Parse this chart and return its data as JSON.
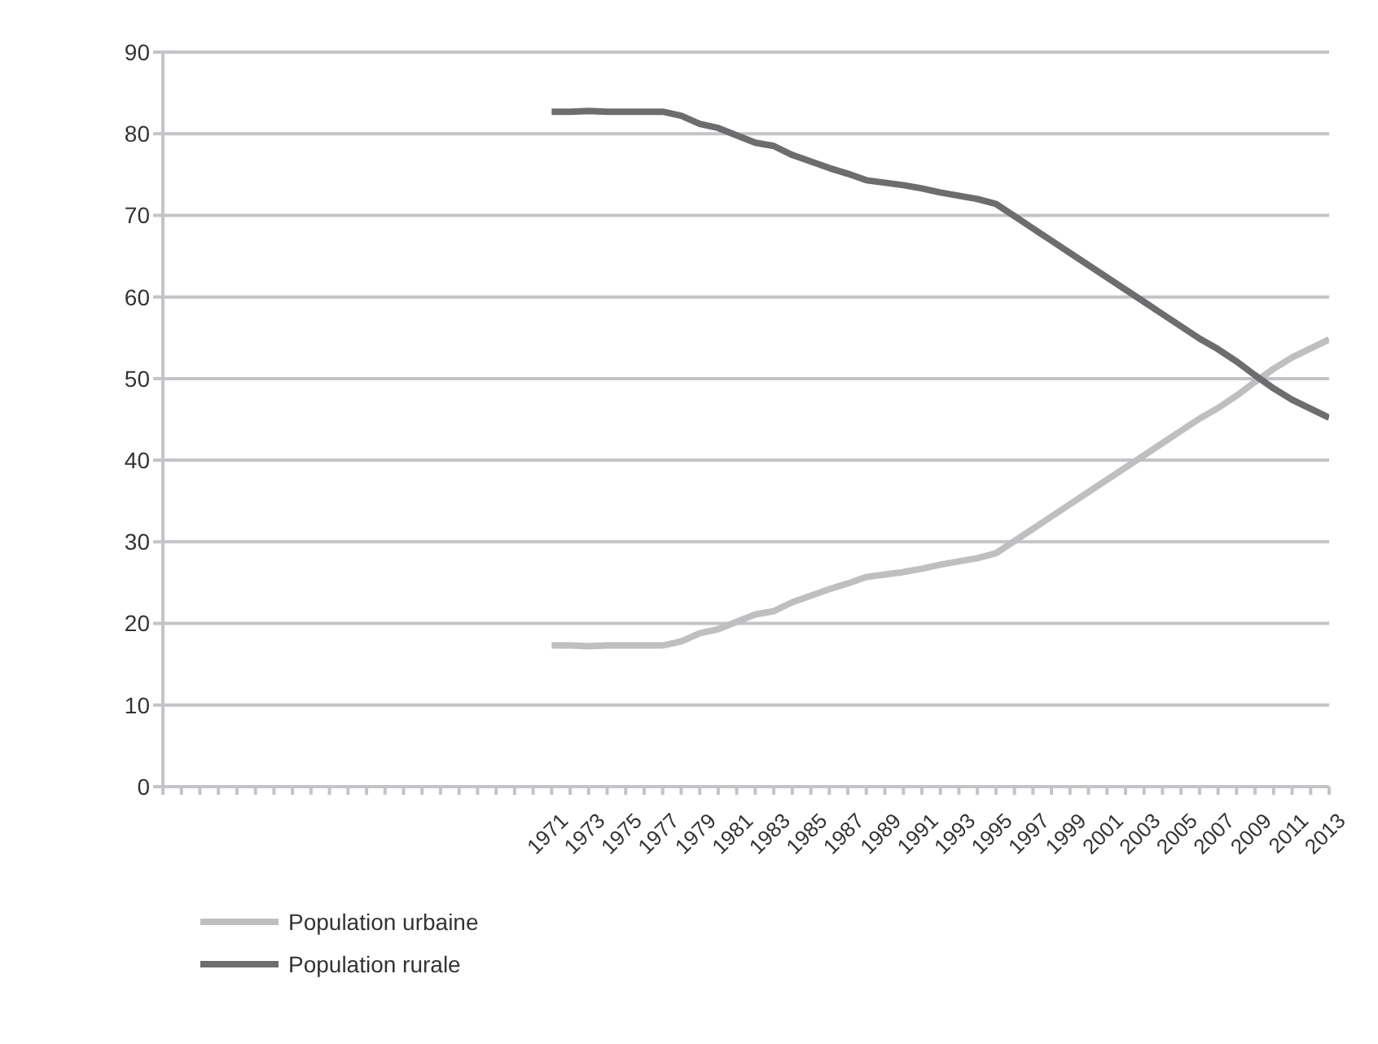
{
  "chart_data": {
    "type": "line",
    "categories": [
      null,
      null,
      null,
      null,
      null,
      null,
      null,
      null,
      null,
      null,
      null,
      null,
      null,
      null,
      null,
      null,
      null,
      null,
      null,
      null,
      null,
      "1971",
      null,
      "1973",
      null,
      "1975",
      null,
      "1977",
      null,
      "1979",
      null,
      "1981",
      null,
      "1983",
      null,
      "1985",
      null,
      "1987",
      null,
      "1989",
      null,
      "1991",
      null,
      "1993",
      null,
      "1995",
      null,
      "1997",
      null,
      "1999",
      null,
      "2001",
      null,
      "2003",
      null,
      "2005",
      null,
      "2007",
      null,
      "2009",
      null,
      "2011",
      null,
      "2013"
    ],
    "series": [
      {
        "name": "Population urbaine",
        "color": "#bfbfc1",
        "values": [
          null,
          null,
          null,
          null,
          null,
          null,
          null,
          null,
          null,
          null,
          null,
          null,
          null,
          null,
          null,
          null,
          null,
          null,
          null,
          null,
          null,
          17.3,
          17.3,
          17.2,
          17.3,
          17.3,
          17.3,
          17.3,
          17.8,
          18.8,
          19.3,
          20.2,
          21.1,
          21.5,
          22.6,
          23.4,
          24.2,
          24.9,
          25.7,
          26.0,
          26.3,
          26.7,
          27.2,
          27.6,
          28.0,
          28.6,
          30.1,
          31.6,
          33.1,
          34.6,
          36.1,
          37.6,
          39.1,
          40.6,
          42.1,
          43.6,
          45.1,
          46.4,
          47.9,
          49.6,
          51.2,
          52.6,
          53.7,
          54.8
        ]
      },
      {
        "name": "Population rurale",
        "color": "#6d6d6f",
        "values": [
          null,
          null,
          null,
          null,
          null,
          null,
          null,
          null,
          null,
          null,
          null,
          null,
          null,
          null,
          null,
          null,
          null,
          null,
          null,
          null,
          null,
          82.7,
          82.7,
          82.8,
          82.7,
          82.7,
          82.7,
          82.7,
          82.2,
          81.2,
          80.7,
          79.8,
          78.9,
          78.5,
          77.4,
          76.6,
          75.8,
          75.1,
          74.3,
          74.0,
          73.7,
          73.3,
          72.8,
          72.4,
          72.0,
          71.4,
          69.9,
          68.4,
          66.9,
          65.4,
          63.9,
          62.4,
          60.9,
          59.4,
          57.9,
          56.4,
          54.9,
          53.6,
          52.1,
          50.4,
          48.8,
          47.4,
          46.3,
          45.2
        ]
      }
    ],
    "ylim": [
      0,
      90
    ],
    "yticks": [
      0,
      10,
      20,
      30,
      40,
      50,
      60,
      70,
      80,
      90
    ],
    "grid": "y",
    "legend": "bottom left",
    "marker": "none",
    "line_style": "solid"
  }
}
